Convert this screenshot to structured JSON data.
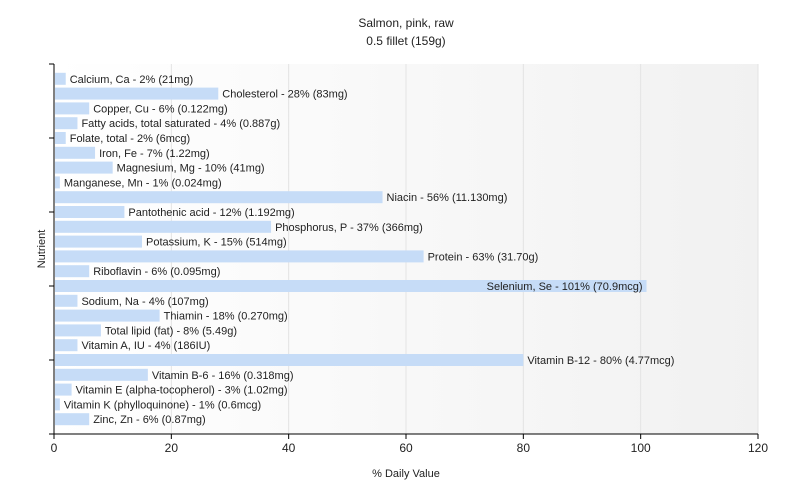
{
  "chart_data": {
    "type": "bar",
    "orientation": "horizontal",
    "title": "Salmon, pink, raw",
    "subtitle": "0.5 fillet (159g)",
    "xlabel": "% Daily Value",
    "ylabel": "Nutrient",
    "xlim": [
      0,
      120
    ],
    "xticks": [
      0,
      20,
      40,
      60,
      80,
      100,
      120
    ],
    "grid": true,
    "bar_color": "#c6dcf7",
    "categories": [
      "Calcium, Ca",
      "Cholesterol",
      "Copper, Cu",
      "Fatty acids, total saturated",
      "Folate, total",
      "Iron, Fe",
      "Magnesium, Mg",
      "Manganese, Mn",
      "Niacin",
      "Pantothenic acid",
      "Phosphorus, P",
      "Potassium, K",
      "Protein",
      "Riboflavin",
      "Selenium, Se",
      "Sodium, Na",
      "Thiamin",
      "Total lipid (fat)",
      "Vitamin A, IU",
      "Vitamin B-12",
      "Vitamin B-6",
      "Vitamin E (alpha-tocopherol)",
      "Vitamin K (phylloquinone)",
      "Zinc, Zn"
    ],
    "values": [
      2,
      28,
      6,
      4,
      2,
      7,
      10,
      1,
      56,
      12,
      37,
      15,
      63,
      6,
      101,
      4,
      18,
      8,
      4,
      80,
      16,
      3,
      1,
      6
    ],
    "labels": [
      "Calcium, Ca - 2% (21mg)",
      "Cholesterol - 28% (83mg)",
      "Copper, Cu - 6% (0.122mg)",
      "Fatty acids, total saturated - 4% (0.887g)",
      "Folate, total - 2% (6mcg)",
      "Iron, Fe - 7% (1.22mg)",
      "Magnesium, Mg - 10% (41mg)",
      "Manganese, Mn - 1% (0.024mg)",
      "Niacin - 56% (11.130mg)",
      "Pantothenic acid - 12% (1.192mg)",
      "Phosphorus, P - 37% (366mg)",
      "Potassium, K - 15% (514mg)",
      "Protein - 63% (31.70g)",
      "Riboflavin - 6% (0.095mg)",
      "Selenium, Se - 101% (70.9mcg)",
      "Sodium, Na - 4% (107mg)",
      "Thiamin - 18% (0.270mg)",
      "Total lipid (fat) - 8% (5.49g)",
      "Vitamin A, IU - 4% (186IU)",
      "Vitamin B-12 - 80% (4.77mcg)",
      "Vitamin B-6 - 16% (0.318mg)",
      "Vitamin E (alpha-tocopherol) - 3% (1.02mg)",
      "Vitamin K (phylloquinone) - 1% (0.6mcg)",
      "Zinc, Zn - 6% (0.87mg)"
    ]
  }
}
